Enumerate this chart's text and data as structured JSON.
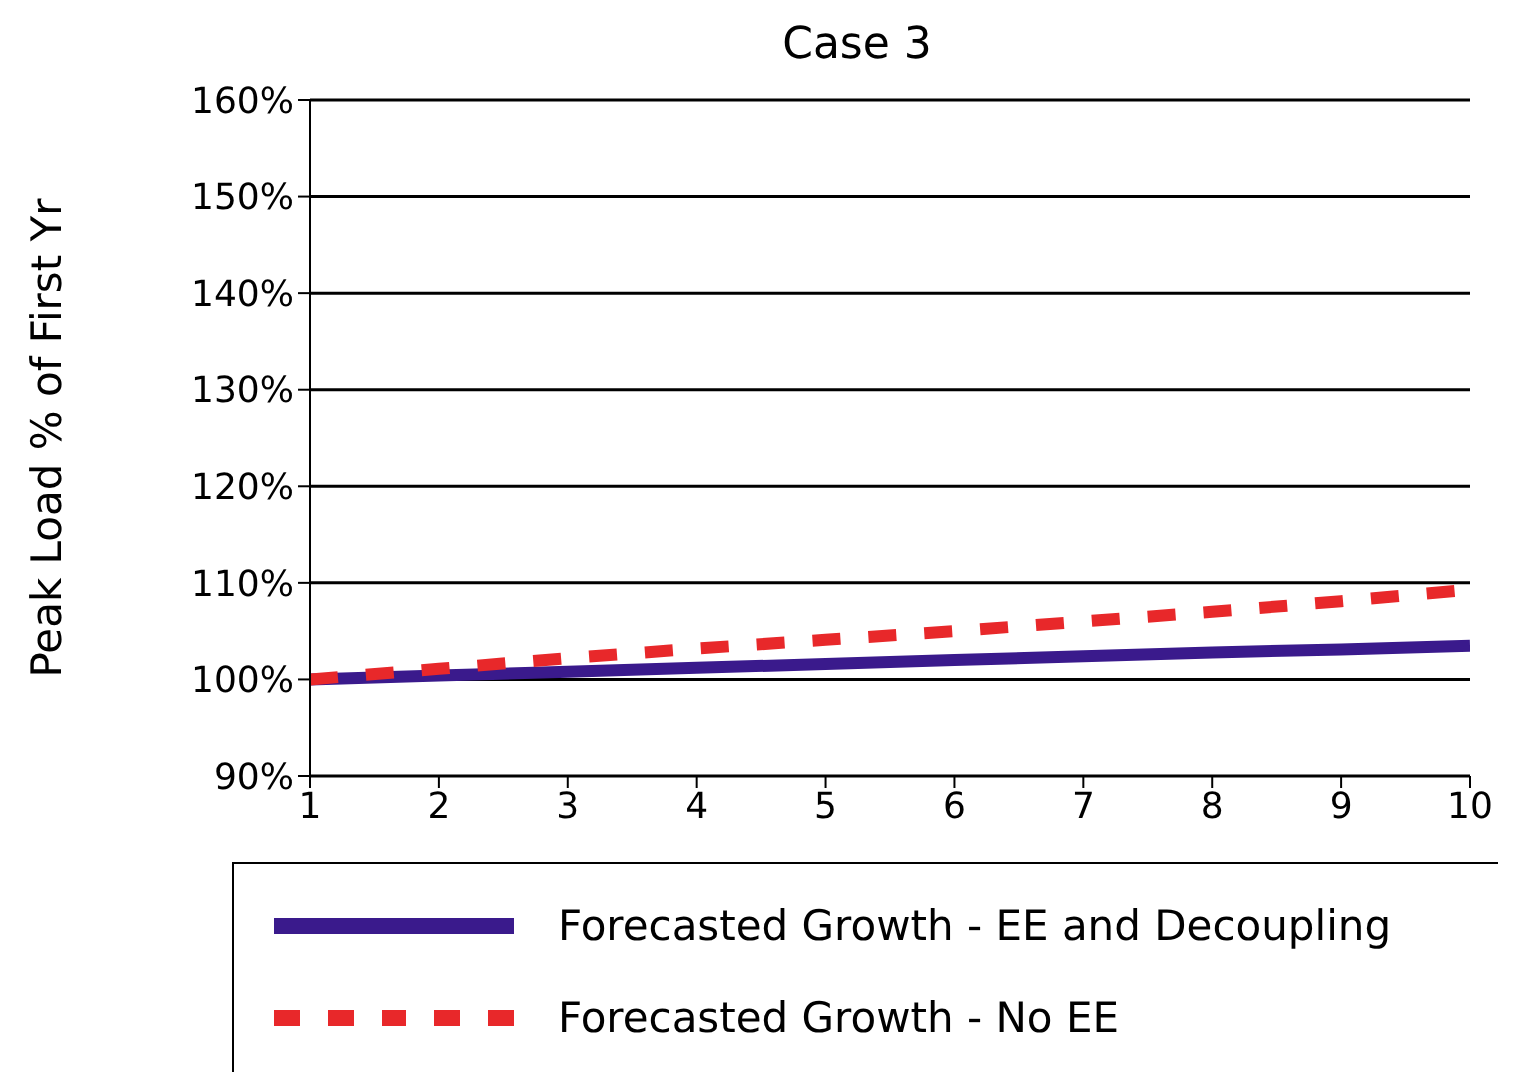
{
  "chart_data": {
    "type": "line",
    "title": "Case 3",
    "ylabel": "Peak Load % of First Yr",
    "x": [
      1,
      2,
      3,
      4,
      5,
      6,
      7,
      8,
      9,
      10
    ],
    "series": [
      {
        "name": "Forecasted Growth - EE and Decoupling",
        "color": "#3a1a8c",
        "values": [
          100,
          100.4,
          100.8,
          101.2,
          101.6,
          102,
          102.4,
          102.8,
          103.1,
          103.5
        ],
        "line_style": "solid"
      },
      {
        "name": "Forecasted Growth - No EE",
        "color": "#e8282a",
        "values": [
          100,
          101.1,
          102.2,
          103.2,
          104.1,
          105,
          106,
          107,
          108.1,
          109.3
        ],
        "line_style": "dashed"
      }
    ],
    "xlim": [
      1,
      10
    ],
    "xticks": [
      1,
      2,
      3,
      4,
      5,
      6,
      7,
      8,
      9,
      10
    ],
    "ylim": [
      90,
      160
    ],
    "yticks": [
      {
        "value": 90,
        "label": "90%"
      },
      {
        "value": 100,
        "label": "100%"
      },
      {
        "value": 110,
        "label": "110%"
      },
      {
        "value": 120,
        "label": "120%"
      },
      {
        "value": 130,
        "label": "130%"
      },
      {
        "value": 140,
        "label": "140%"
      },
      {
        "value": 150,
        "label": "150%"
      },
      {
        "value": 160,
        "label": "160%"
      }
    ],
    "grid": "y",
    "legend": "bottom",
    "marker": "none"
  }
}
